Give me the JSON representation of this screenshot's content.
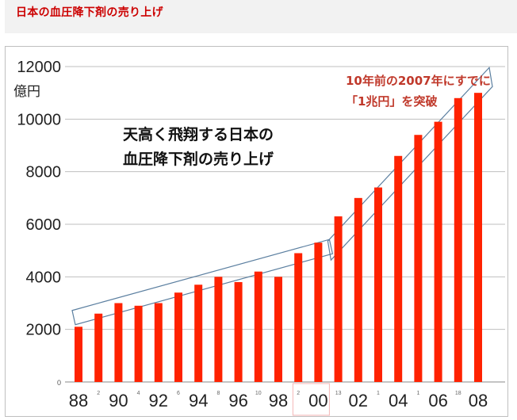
{
  "page": {
    "title": "日本の血圧降下剤の売り上げ"
  },
  "chart_data": {
    "type": "bar",
    "title": "天高く飛翔する日本の\n血圧降下剤の売り上げ",
    "ylabel": "億円",
    "xlabel": "",
    "ylim": [
      0,
      12000
    ],
    "yticks": [
      "12000",
      "10000",
      "8000",
      "6000",
      "4000",
      "2000"
    ],
    "y_zero_label": "0",
    "x_tick_labels": [
      "88",
      "90",
      "92",
      "94",
      "96",
      "98",
      "00",
      "02",
      "04",
      "06",
      "08"
    ],
    "x_minor_labels": [
      "2",
      "4",
      "6",
      "8",
      "10",
      "2",
      "13",
      "1",
      "1",
      "18"
    ],
    "categories": [
      "1988",
      "1989",
      "1990",
      "1991",
      "1992",
      "1993",
      "1994",
      "1995",
      "1996",
      "1997",
      "1998",
      "1999",
      "2000",
      "2001",
      "2002",
      "2003",
      "2004",
      "2005",
      "2006",
      "2007",
      "2008"
    ],
    "values": [
      2100,
      2600,
      3000,
      2900,
      3000,
      3400,
      3700,
      4000,
      3800,
      4200,
      4000,
      4900,
      5300,
      6300,
      7000,
      7400,
      8600,
      9400,
      9900,
      10800,
      11000
    ],
    "bar_color": "#ff2200",
    "grid": true,
    "annotation": "10年前の2007年にすでに\n「1兆円」を突破",
    "annotation_color": "#c0392b",
    "trend_outline_color": "#5b7fa0",
    "highlight_box_color": "#f4b6b6"
  }
}
